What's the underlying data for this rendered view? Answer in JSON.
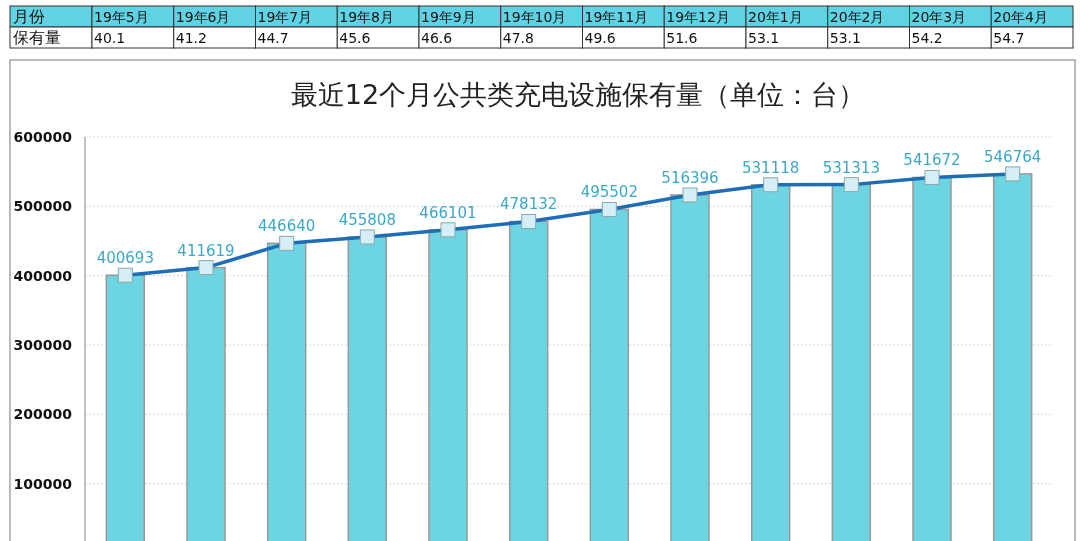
{
  "chart_data": [
    {
      "type": "other",
      "xlabel": "月份",
      "ylabel": "保有量",
      "categories": [
        "19年5月",
        "19年6月",
        "19年7月",
        "19年8月",
        "19年9月",
        "19年10月",
        "19年11月",
        "19年12月",
        "20年1月",
        "20年2月",
        "20年3月",
        "20年4月"
      ],
      "values": [
        40.1,
        41.2,
        44.7,
        45.6,
        46.6,
        47.8,
        49.6,
        51.6,
        53.1,
        53.1,
        54.2,
        54.7
      ],
      "data_labels": true
    },
    {
      "type": "bar",
      "title": "最近12个月公共类充电设施保有量（单位：台）",
      "categories": [
        null,
        null,
        null,
        null,
        null,
        null,
        null,
        null,
        null,
        null,
        null,
        null
      ],
      "ylim": [
        0,
        600000
      ],
      "yticks": [
        100000,
        200000,
        300000,
        400000,
        500000,
        600000
      ],
      "grid": "y",
      "series": [
        {
          "type": "bar",
          "color": "#6dd5e2",
          "values": [
            400693,
            411619,
            446640,
            455808,
            466101,
            478132,
            495502,
            516396,
            531118,
            531313,
            541672,
            546764
          ]
        },
        {
          "type": "line",
          "color": "#1f6db5",
          "marker": "square",
          "data_labels": true,
          "values": [
            400693,
            411619,
            446640,
            455808,
            466101,
            478132,
            495502,
            516396,
            531118,
            531313,
            541672,
            546764
          ]
        }
      ]
    }
  ]
}
